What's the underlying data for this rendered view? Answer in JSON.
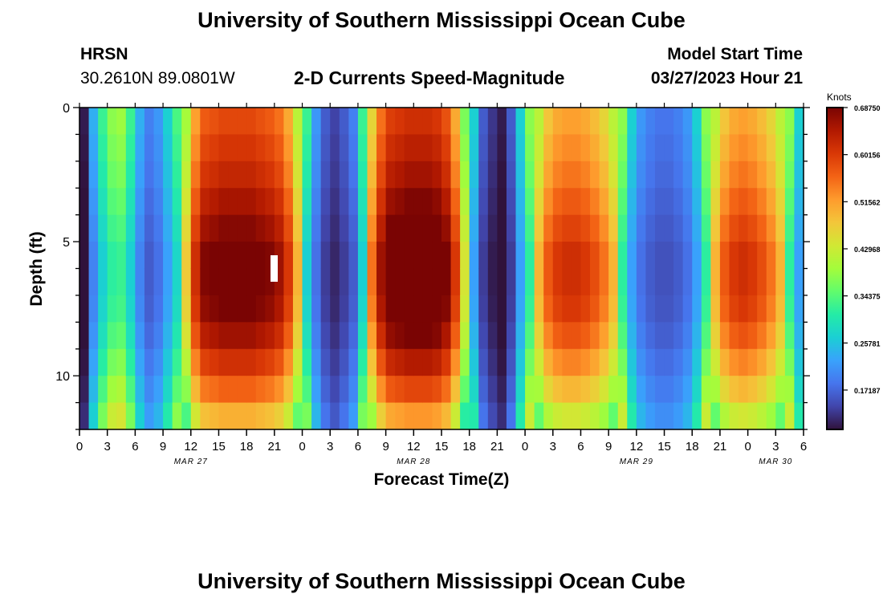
{
  "header": {
    "title": "University of Southern Mississippi Ocean Cube",
    "station": "HRSN",
    "coords": "30.2610N  89.0801W",
    "subtitle": "2-D Currents Speed-Magnitude",
    "model_start_label": "Model Start Time",
    "model_start_value": "03/27/2023 Hour 21"
  },
  "footer": {
    "title": "University of Southern Mississippi Ocean Cube"
  },
  "colorbar": {
    "unit": "Knots",
    "min": 0.1,
    "max": 0.6875,
    "ticks": [
      "0.68750",
      "0.60156",
      "0.51562",
      "0.42968",
      "0.34375",
      "0.25781",
      "0.17187"
    ],
    "tick_values": [
      0.6875,
      0.60156,
      0.51562,
      0.42968,
      0.34375,
      0.25781,
      0.17187
    ],
    "colors": [
      "#30123b",
      "#4145ab",
      "#4675ed",
      "#39a2fc",
      "#1bcfd4",
      "#24eca6",
      "#61fc6c",
      "#a4fc3b",
      "#d1e834",
      "#f3c63a",
      "#fe9b2d",
      "#f36315",
      "#d93806",
      "#b11901",
      "#7a0403"
    ]
  },
  "chart_data": {
    "type": "heatmap",
    "title": "2-D Currents Speed-Magnitude",
    "xlabel": "Forecast Time(Z)",
    "ylabel": "Depth (ft)",
    "x_ticks": [
      "0",
      "3",
      "6",
      "9",
      "12",
      "15",
      "18",
      "21",
      "0",
      "3",
      "6",
      "9",
      "12",
      "15",
      "18",
      "21",
      "0",
      "3",
      "6",
      "9",
      "12",
      "15",
      "18",
      "21",
      "0",
      "3",
      "6"
    ],
    "x_tick_hours": [
      0,
      3,
      6,
      9,
      12,
      15,
      18,
      21,
      24,
      27,
      30,
      33,
      36,
      39,
      42,
      45,
      48,
      51,
      54,
      57,
      60,
      63,
      66,
      69,
      72,
      75,
      78
    ],
    "x_range_hours": [
      0,
      78
    ],
    "dates": [
      {
        "label": "MAR 27",
        "hour": 12
      },
      {
        "label": "MAR 28",
        "hour": 36
      },
      {
        "label": "MAR 29",
        "hour": 60
      },
      {
        "label": "MAR 30",
        "hour": 75
      }
    ],
    "y_ticks": [
      "0",
      "5",
      "10"
    ],
    "y_tick_values": [
      0,
      5,
      10
    ],
    "y_range_ft": [
      0,
      12
    ],
    "hours": [
      0,
      1,
      2,
      3,
      4,
      5,
      6,
      7,
      8,
      9,
      10,
      11,
      12,
      13,
      14,
      15,
      16,
      17,
      18,
      19,
      20,
      21,
      22,
      23,
      24,
      25,
      26,
      27,
      28,
      29,
      30,
      31,
      32,
      33,
      34,
      35,
      36,
      37,
      38,
      39,
      40,
      41,
      42,
      43,
      44,
      45,
      46,
      47,
      48,
      49,
      50,
      51,
      52,
      53,
      54,
      55,
      56,
      57,
      58,
      59,
      60,
      61,
      62,
      63,
      64,
      65,
      66,
      67,
      68,
      69,
      70,
      71,
      72,
      73,
      74,
      75,
      76,
      77
    ],
    "depths_ft": [
      0.5,
      1.5,
      2.5,
      3.5,
      4.5,
      5.5,
      6.5,
      7.5,
      8.5,
      9.5,
      10.5,
      11.5
    ],
    "surface_speed": [
      0.1,
      0.22,
      0.3,
      0.35,
      0.36,
      0.3,
      0.22,
      0.18,
      0.2,
      0.25,
      0.31,
      0.43,
      0.56,
      0.62,
      0.63,
      0.64,
      0.64,
      0.64,
      0.64,
      0.63,
      0.62,
      0.6,
      0.55,
      0.45,
      0.3,
      0.2,
      0.15,
      0.13,
      0.15,
      0.18,
      0.3,
      0.5,
      0.6,
      0.65,
      0.66,
      0.67,
      0.67,
      0.67,
      0.66,
      0.63,
      0.55,
      0.4,
      0.25,
      0.15,
      0.12,
      0.1,
      0.15,
      0.25,
      0.35,
      0.45,
      0.52,
      0.55,
      0.56,
      0.56,
      0.55,
      0.53,
      0.5,
      0.45,
      0.35,
      0.25,
      0.2,
      0.18,
      0.17,
      0.17,
      0.18,
      0.2,
      0.25,
      0.35,
      0.45,
      0.52,
      0.55,
      0.56,
      0.55,
      0.53,
      0.5,
      0.45,
      0.35,
      0.25
    ],
    "depth_profile": [
      0.92,
      0.95,
      0.98,
      1.02,
      1.06,
      1.1,
      1.1,
      1.08,
      1.03,
      0.96,
      0.88,
      0.78
    ],
    "max_speed_knots": 0.6875,
    "min_speed_knots": 0.1
  }
}
